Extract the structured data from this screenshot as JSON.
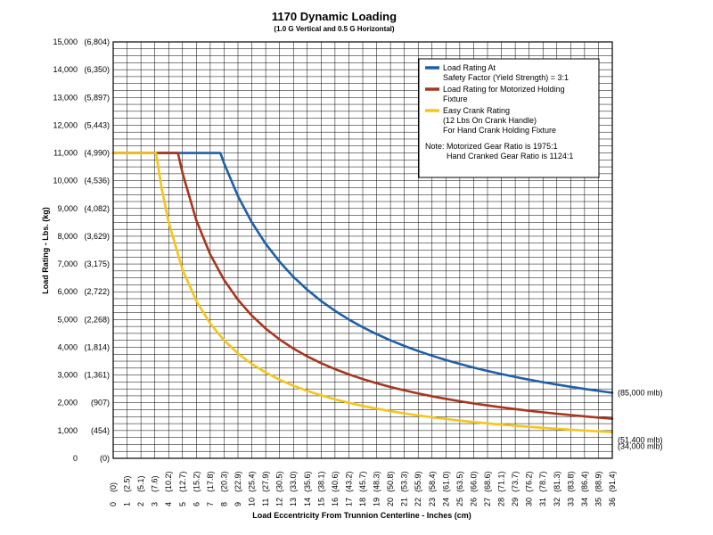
{
  "chart_data": {
    "type": "line",
    "title": "1170 Dynamic Loading",
    "subtitle": "(1.0 G Vertical and 0.5 G Horizontal)",
    "xlabel": "Load Eccentricity From Trunnion Centerline - Inches (cm)",
    "ylabel": "Load Rating - Lbs. (kg)",
    "xlim": [
      0,
      36
    ],
    "ylim": [
      0,
      15000
    ],
    "grid": true,
    "legend_position": "top-right",
    "x_ticks": [
      {
        "value": 0,
        "label": "0",
        "sub": "(0)"
      },
      {
        "value": 1,
        "label": "1",
        "sub": "(2.5)"
      },
      {
        "value": 2,
        "label": "2",
        "sub": "(5.1)"
      },
      {
        "value": 3,
        "label": "3",
        "sub": "(7.6)"
      },
      {
        "value": 4,
        "label": "4",
        "sub": "(10.2)"
      },
      {
        "value": 5,
        "label": "5",
        "sub": "(12.7)"
      },
      {
        "value": 6,
        "label": "6",
        "sub": "(15.2)"
      },
      {
        "value": 7,
        "label": "7",
        "sub": "(17.8)"
      },
      {
        "value": 8,
        "label": "8",
        "sub": "(20.3)"
      },
      {
        "value": 9,
        "label": "9",
        "sub": "(22.9)"
      },
      {
        "value": 10,
        "label": "10",
        "sub": "(25.4)"
      },
      {
        "value": 11,
        "label": "11",
        "sub": "(27.9)"
      },
      {
        "value": 12,
        "label": "12",
        "sub": "(30.5)"
      },
      {
        "value": 13,
        "label": "13",
        "sub": "(33.0)"
      },
      {
        "value": 14,
        "label": "14",
        "sub": "(35.6)"
      },
      {
        "value": 15,
        "label": "15",
        "sub": "(38.1)"
      },
      {
        "value": 16,
        "label": "16",
        "sub": "(40.6)"
      },
      {
        "value": 17,
        "label": "17",
        "sub": "(43.2)"
      },
      {
        "value": 18,
        "label": "18",
        "sub": "(45.7)"
      },
      {
        "value": 19,
        "label": "19",
        "sub": "(48.3)"
      },
      {
        "value": 20,
        "label": "20",
        "sub": "(50.8)"
      },
      {
        "value": 21,
        "label": "21",
        "sub": "(53.3)"
      },
      {
        "value": 22,
        "label": "22",
        "sub": "(55.9)"
      },
      {
        "value": 23,
        "label": "23",
        "sub": "(58.4)"
      },
      {
        "value": 24,
        "label": "24",
        "sub": "(61.0)"
      },
      {
        "value": 25,
        "label": "25",
        "sub": "(63.5)"
      },
      {
        "value": 26,
        "label": "26",
        "sub": "(66.0)"
      },
      {
        "value": 27,
        "label": "27",
        "sub": "(68.6)"
      },
      {
        "value": 28,
        "label": "28",
        "sub": "(71.1)"
      },
      {
        "value": 29,
        "label": "29",
        "sub": "(73.7)"
      },
      {
        "value": 30,
        "label": "30",
        "sub": "(76.2)"
      },
      {
        "value": 31,
        "label": "31",
        "sub": "(78.7)"
      },
      {
        "value": 32,
        "label": "32",
        "sub": "(81.3)"
      },
      {
        "value": 33,
        "label": "33",
        "sub": "(83.8)"
      },
      {
        "value": 34,
        "label": "34",
        "sub": "(86.4)"
      },
      {
        "value": 35,
        "label": "35",
        "sub": "(88.9)"
      },
      {
        "value": 36,
        "label": "36",
        "sub": "(91.4)"
      }
    ],
    "y_ticks": [
      {
        "value": 0,
        "label": "0",
        "sub": "(0)"
      },
      {
        "value": 1000,
        "label": "1,000",
        "sub": "(454)"
      },
      {
        "value": 2000,
        "label": "2,000",
        "sub": "(907)"
      },
      {
        "value": 3000,
        "label": "3,000",
        "sub": "(1,361)"
      },
      {
        "value": 4000,
        "label": "4,000",
        "sub": "(1,814)"
      },
      {
        "value": 5000,
        "label": "5,000",
        "sub": "(2,268)"
      },
      {
        "value": 6000,
        "label": "6,000",
        "sub": "(2,722)"
      },
      {
        "value": 7000,
        "label": "7,000",
        "sub": "(3,175)"
      },
      {
        "value": 8000,
        "label": "8,000",
        "sub": "(3,629)"
      },
      {
        "value": 9000,
        "label": "9,000",
        "sub": "(4,082)"
      },
      {
        "value": 10000,
        "label": "10,000",
        "sub": "(4,536)"
      },
      {
        "value": 11000,
        "label": "11,000",
        "sub": "(4,990)"
      },
      {
        "value": 12000,
        "label": "12,000",
        "sub": "(5,443)"
      },
      {
        "value": 13000,
        "label": "13,000",
        "sub": "(5,897)"
      },
      {
        "value": 14000,
        "label": "14,000",
        "sub": "(6,350)"
      },
      {
        "value": 15000,
        "label": "15,000",
        "sub": "(6,804)"
      }
    ],
    "series": [
      {
        "name": "Load Rating At Safety Factor (Yield Strength) = 3:1",
        "legend_lines": [
          "Load Rating At",
          "Safety Factor (Yield Strength) = 3:1"
        ],
        "color": "#1f5fa8",
        "end_label": "(85,000 mlb)",
        "points": [
          [
            0,
            11000
          ],
          [
            7.73,
            11000
          ],
          [
            8,
            10625
          ],
          [
            9,
            9444
          ],
          [
            10,
            8500
          ],
          [
            11,
            7727
          ],
          [
            12,
            7083
          ],
          [
            13,
            6538
          ],
          [
            14,
            6071
          ],
          [
            15,
            5667
          ],
          [
            16,
            5313
          ],
          [
            17,
            5000
          ],
          [
            18,
            4722
          ],
          [
            19,
            4474
          ],
          [
            20,
            4250
          ],
          [
            21,
            4048
          ],
          [
            22,
            3864
          ],
          [
            23,
            3696
          ],
          [
            24,
            3542
          ],
          [
            25,
            3400
          ],
          [
            26,
            3269
          ],
          [
            27,
            3148
          ],
          [
            28,
            3036
          ],
          [
            29,
            2931
          ],
          [
            30,
            2833
          ],
          [
            31,
            2742
          ],
          [
            32,
            2656
          ],
          [
            33,
            2576
          ],
          [
            34,
            2500
          ],
          [
            35,
            2429
          ],
          [
            36,
            2361
          ]
        ]
      },
      {
        "name": "Load Rating for Motorized Holding Fixture",
        "legend_lines": [
          "Load Rating for Motorized Holding",
          "Fixture"
        ],
        "color": "#a8361e",
        "end_label": "(51,400 mlb)",
        "points": [
          [
            0,
            11000
          ],
          [
            4.67,
            11000
          ],
          [
            5,
            10280
          ],
          [
            6,
            8567
          ],
          [
            7,
            7343
          ],
          [
            8,
            6425
          ],
          [
            9,
            5711
          ],
          [
            10,
            5140
          ],
          [
            11,
            4673
          ],
          [
            12,
            4283
          ],
          [
            13,
            3954
          ],
          [
            14,
            3671
          ],
          [
            15,
            3427
          ],
          [
            16,
            3213
          ],
          [
            17,
            3024
          ],
          [
            18,
            2856
          ],
          [
            19,
            2705
          ],
          [
            20,
            2570
          ],
          [
            21,
            2448
          ],
          [
            22,
            2336
          ],
          [
            23,
            2235
          ],
          [
            24,
            2142
          ],
          [
            25,
            2056
          ],
          [
            26,
            1977
          ],
          [
            27,
            1904
          ],
          [
            28,
            1836
          ],
          [
            29,
            1772
          ],
          [
            30,
            1713
          ],
          [
            31,
            1658
          ],
          [
            32,
            1606
          ],
          [
            33,
            1558
          ],
          [
            34,
            1512
          ],
          [
            35,
            1469
          ],
          [
            36,
            1428
          ]
        ]
      },
      {
        "name": "Easy Crank Rating (12 Lbs On Crank Handle) For Hand Crank Holding Fixture",
        "legend_lines": [
          "Easy Crank Rating",
          "(12 Lbs On Crank Handle)",
          "For Hand Crank Holding Fixture"
        ],
        "color": "#f5c518",
        "end_label": "(34,000 mlb)",
        "points": [
          [
            0,
            11000
          ],
          [
            3.09,
            11000
          ],
          [
            3.5,
            9714
          ],
          [
            4,
            8500
          ],
          [
            5,
            6800
          ],
          [
            6,
            5667
          ],
          [
            7,
            4857
          ],
          [
            8,
            4250
          ],
          [
            9,
            3778
          ],
          [
            10,
            3400
          ],
          [
            11,
            3091
          ],
          [
            12,
            2833
          ],
          [
            13,
            2615
          ],
          [
            14,
            2429
          ],
          [
            15,
            2267
          ],
          [
            16,
            2125
          ],
          [
            17,
            2000
          ],
          [
            18,
            1889
          ],
          [
            19,
            1789
          ],
          [
            20,
            1700
          ],
          [
            21,
            1619
          ],
          [
            22,
            1545
          ],
          [
            23,
            1478
          ],
          [
            24,
            1417
          ],
          [
            25,
            1360
          ],
          [
            26,
            1308
          ],
          [
            27,
            1259
          ],
          [
            28,
            1214
          ],
          [
            29,
            1172
          ],
          [
            30,
            1133
          ],
          [
            31,
            1097
          ],
          [
            32,
            1063
          ],
          [
            33,
            1030
          ],
          [
            34,
            1000
          ],
          [
            35,
            971
          ],
          [
            36,
            944
          ]
        ]
      }
    ],
    "note_lines": [
      "Note: Motorized Gear Ratio is 1975:1",
      "Hand Cranked Gear Ratio is 1124:1"
    ]
  }
}
